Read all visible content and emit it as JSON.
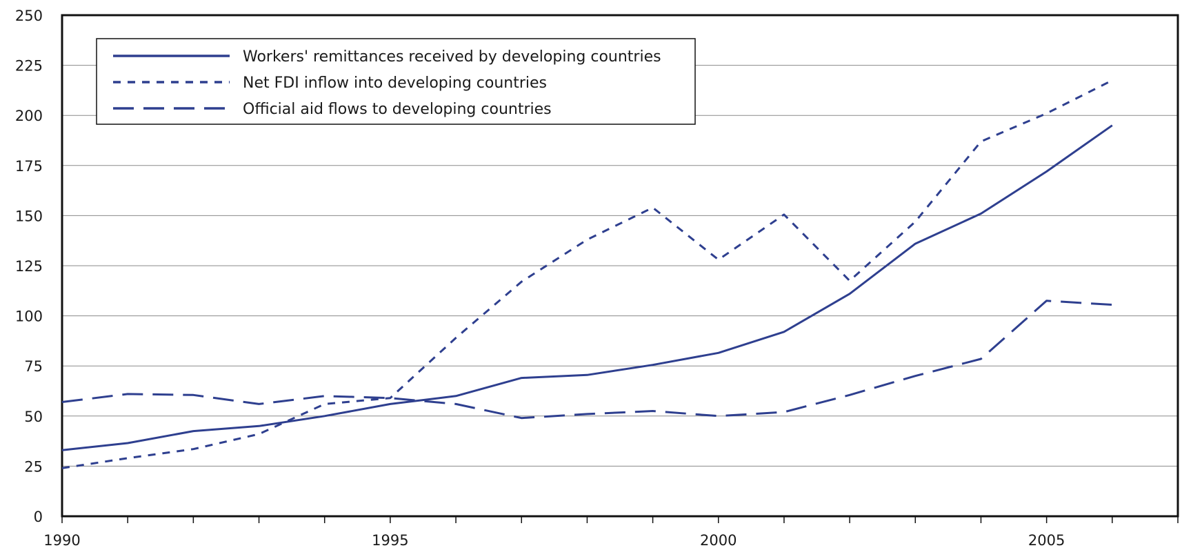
{
  "chart_data": {
    "type": "line",
    "title": "",
    "xlabel": "",
    "ylabel": "",
    "x": [
      1990,
      1991,
      1992,
      1993,
      1994,
      1995,
      1996,
      1997,
      1998,
      1999,
      2000,
      2001,
      2002,
      2003,
      2004,
      2005,
      2006
    ],
    "xlim": [
      1990,
      2007
    ],
    "ylim": [
      0,
      250
    ],
    "x_tick_labels": [
      "1990",
      "1995",
      "2000",
      "2005"
    ],
    "y_tick_labels": [
      "0",
      "25",
      "50",
      "75",
      "100",
      "125",
      "150",
      "175",
      "200",
      "225",
      "250"
    ],
    "grid": "horizontal",
    "legend_position": "top-left",
    "line_color": "#2e3f8f",
    "series": [
      {
        "name": "Workers' remittances received by developing countries",
        "style": "solid",
        "values": [
          33,
          36.5,
          42.5,
          45,
          50,
          56,
          60,
          69,
          70.5,
          75.5,
          81.5,
          92,
          111,
          136,
          151,
          172,
          195
        ]
      },
      {
        "name": "Net FDI inflow into developing countries",
        "style": "dotted",
        "values": [
          24,
          29,
          33.5,
          41,
          56,
          59,
          89,
          117,
          138,
          154,
          128,
          150.5,
          117.5,
          147,
          187,
          201,
          217.5
        ]
      },
      {
        "name": "Official aid flows to developing countries",
        "style": "dashed",
        "values": [
          57,
          61,
          60.5,
          56,
          60,
          59,
          56,
          49,
          51,
          52.5,
          50,
          52,
          60.5,
          70,
          78.5,
          107.5,
          105.5
        ]
      }
    ]
  }
}
